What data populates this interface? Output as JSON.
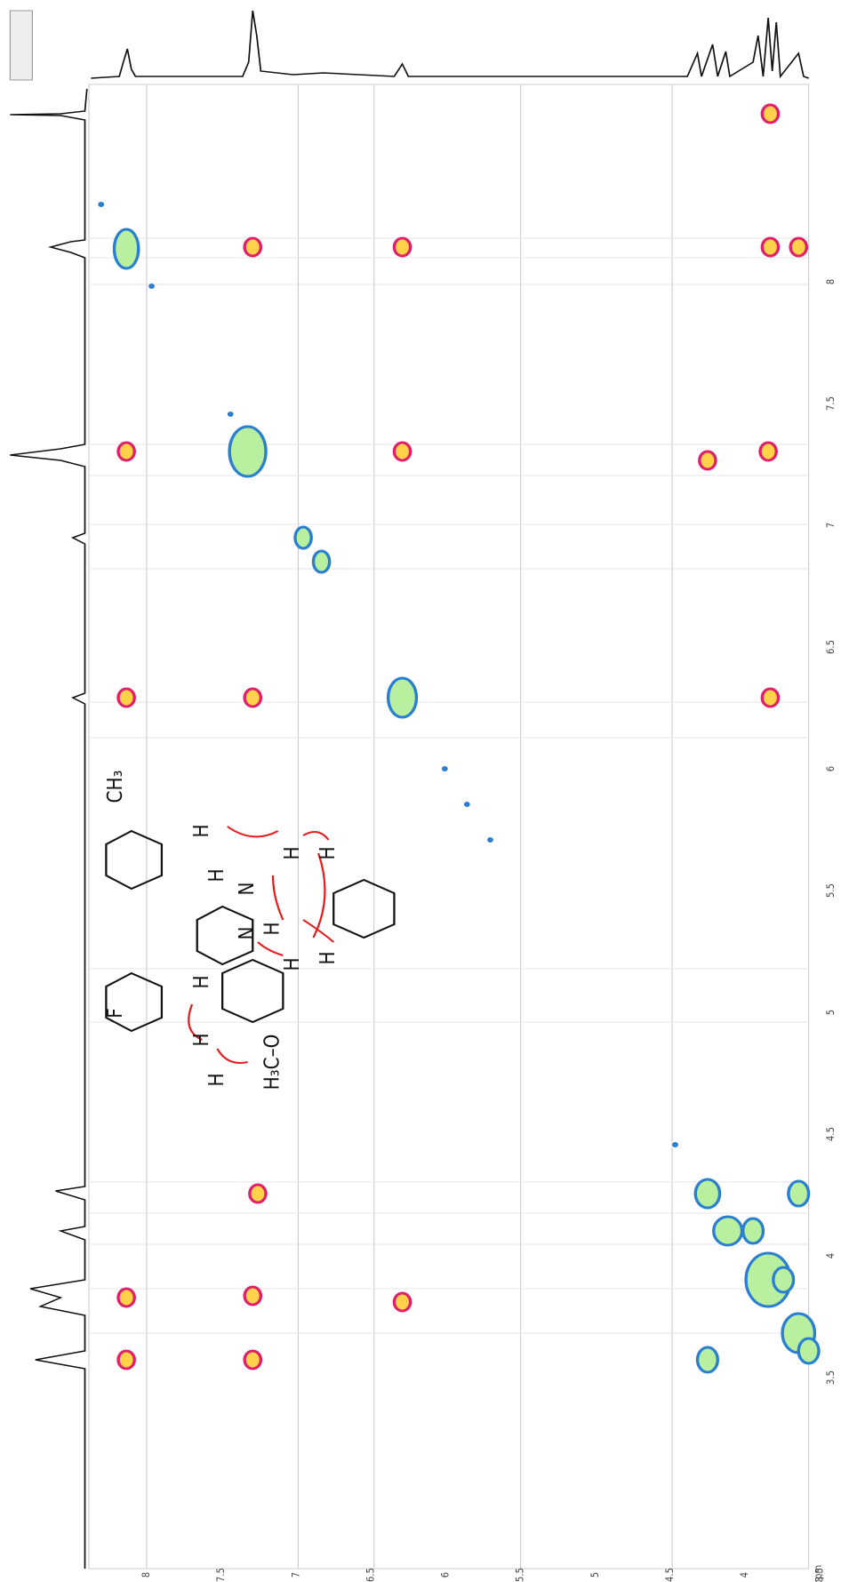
{
  "spectrum": {
    "x_unit": "ppm",
    "x_ticks": [
      "8",
      "7.5",
      "7",
      "6.5",
      "6",
      "5.5",
      "5",
      "4.5",
      "4",
      "3.5"
    ]
  },
  "molecule": {
    "labels": [
      "CH₃",
      "H",
      "H",
      "N",
      "H",
      "H",
      "H",
      "N",
      "H",
      "H",
      "H",
      "F",
      "H",
      "H",
      "H₃C–O"
    ]
  }
}
